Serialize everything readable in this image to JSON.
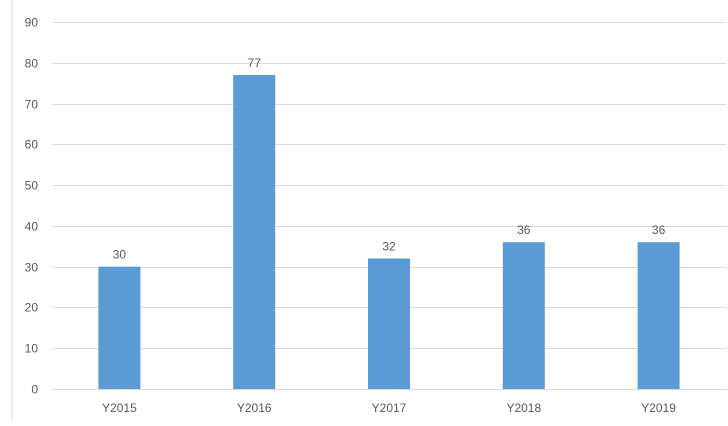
{
  "chart_data": {
    "type": "bar",
    "categories": [
      "Y2015",
      "Y2016",
      "Y2017",
      "Y2018",
      "Y2019"
    ],
    "values": [
      30,
      77,
      32,
      36,
      36
    ],
    "data_labels": [
      "30",
      "77",
      "32",
      "36",
      "36"
    ],
    "title": "",
    "xlabel": "",
    "ylabel": "",
    "ylim": [
      0,
      90
    ],
    "yticks": [
      0,
      10,
      20,
      30,
      40,
      50,
      60,
      70,
      80,
      90
    ],
    "grid": true,
    "legend": "none",
    "colors": {
      "bar": "#5b9bd5",
      "grid": "#d9d9d9",
      "axis_text": "#595959",
      "border": "#d9d9d9"
    }
  }
}
